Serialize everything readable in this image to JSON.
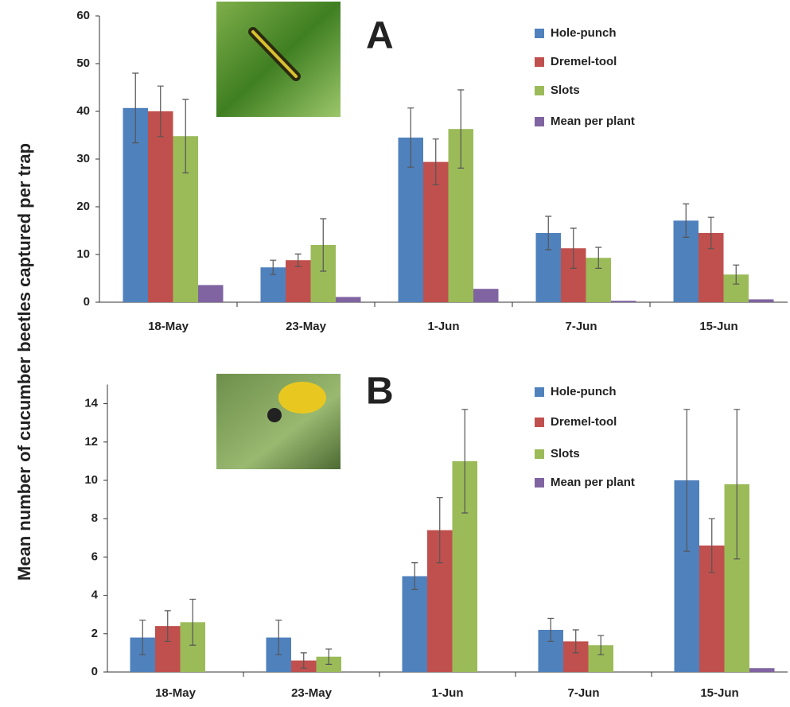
{
  "chart_data": [
    {
      "type": "bar",
      "label": "A",
      "ylabel": "Mean number of cucumber beetles captured per trap",
      "categories": [
        "18-May",
        "23-May",
        "1-Jun",
        "7-Jun",
        "15-Jun"
      ],
      "series": [
        {
          "name": "Hole-punch",
          "color": "#4f81bd",
          "values": [
            40.7,
            7.3,
            34.5,
            14.5,
            17.1
          ],
          "errors": [
            7.3,
            1.5,
            6.2,
            3.5,
            3.5
          ]
        },
        {
          "name": "Dremel-tool",
          "color": "#c0504d",
          "values": [
            40,
            8.8,
            29.4,
            11.3,
            14.5
          ],
          "errors": [
            5.3,
            1.3,
            4.8,
            4.2,
            3.3
          ]
        },
        {
          "name": "Slots",
          "color": "#9bbb59",
          "values": [
            34.8,
            12,
            36.3,
            9.3,
            5.8
          ],
          "errors": [
            7.7,
            5.5,
            8.2,
            2.2,
            2
          ]
        },
        {
          "name": "Mean per plant",
          "color": "#8064a2",
          "values": [
            3.6,
            1.1,
            2.8,
            0.3,
            0.6
          ]
        }
      ],
      "ylim": [
        0,
        60
      ],
      "yticks": [
        0,
        10,
        20,
        30,
        40,
        50,
        60
      ]
    },
    {
      "type": "bar",
      "label": "B",
      "categories": [
        "18-May",
        "23-May",
        "1-Jun",
        "7-Jun",
        "15-Jun"
      ],
      "series": [
        {
          "name": "Hole-punch",
          "color": "#4f81bd",
          "values": [
            1.8,
            1.8,
            5,
            2.2,
            10
          ],
          "errors": [
            0.9,
            0.9,
            0.7,
            0.6,
            3.7
          ]
        },
        {
          "name": "Dremel-tool",
          "color": "#c0504d",
          "values": [
            2.4,
            0.6,
            7.4,
            1.6,
            6.6
          ],
          "errors": [
            0.8,
            0.4,
            1.7,
            0.6,
            1.4
          ]
        },
        {
          "name": "Slots",
          "color": "#9bbb59",
          "values": [
            2.6,
            0.8,
            11,
            1.4,
            9.8
          ],
          "errors": [
            1.2,
            0.4,
            2.7,
            0.5,
            3.9
          ]
        },
        {
          "name": "Mean per plant",
          "color": "#8064a2",
          "values": [
            0,
            0,
            0,
            0,
            0.2
          ]
        }
      ],
      "ylim": [
        0,
        15
      ],
      "yticks": [
        0,
        2,
        4,
        6,
        8,
        10,
        12,
        14
      ]
    }
  ]
}
